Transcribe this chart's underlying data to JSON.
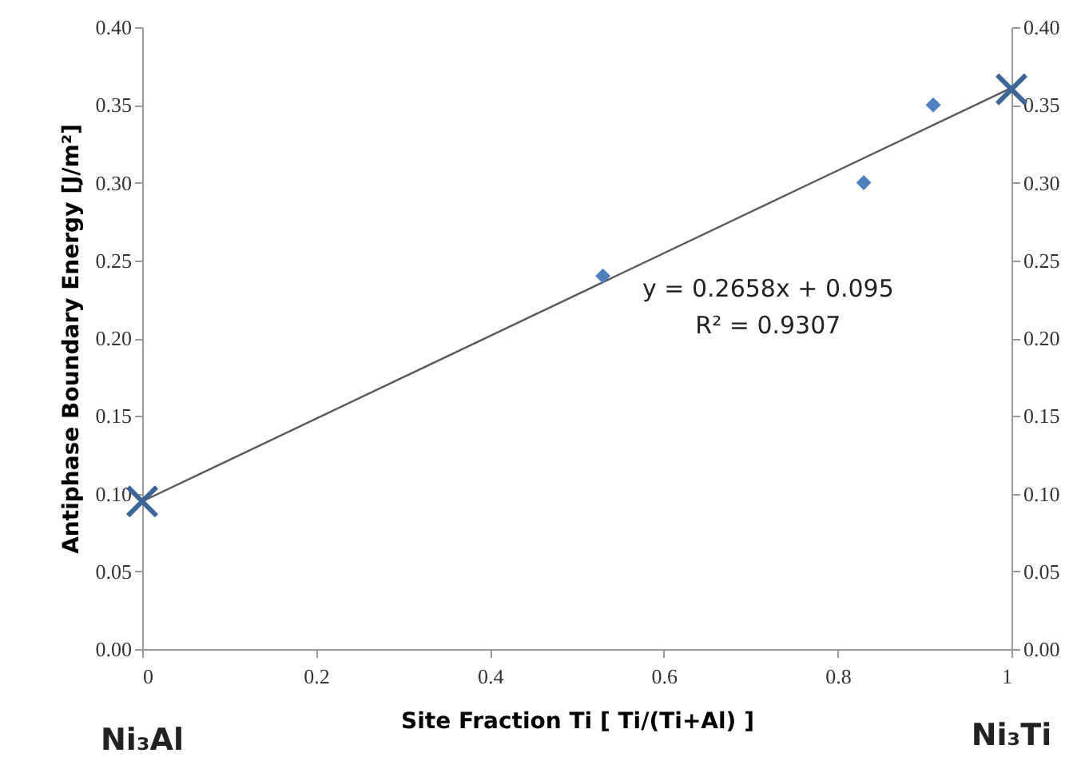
{
  "chart_data": {
    "type": "scatter",
    "xlabel": "Site Fraction Ti [ Ti/(Ti+Al) ]",
    "ylabel": "Antiphase Boundary Energy [J/m²]",
    "xlim": [
      0,
      1
    ],
    "xticks": [
      0,
      0.2,
      0.4,
      0.6,
      0.8,
      1
    ],
    "ylim": [
      0,
      0.4
    ],
    "yticks": [
      {
        "value": 0,
        "label": "0.00"
      },
      {
        "value": 0.05,
        "label": "0.05"
      },
      {
        "value": 0.1,
        "label": "0.10"
      },
      {
        "value": 0.15,
        "label": "0.15"
      },
      {
        "value": 0.2,
        "label": "0.20"
      },
      {
        "value": 0.25,
        "label": "0.25"
      },
      {
        "value": 0.3,
        "label": "0.30"
      },
      {
        "value": 0.35,
        "label": "0.35"
      },
      {
        "value": 0.4,
        "label": "0.40"
      }
    ],
    "y2lim": [
      0,
      0.4
    ],
    "y2ticks": [
      {
        "value": 0,
        "label": "0.00"
      },
      {
        "value": 0.05,
        "label": "0.05"
      },
      {
        "value": 0.1,
        "label": "0.10"
      },
      {
        "value": 0.15,
        "label": "0.15"
      },
      {
        "value": 0.2,
        "label": "0.20"
      },
      {
        "value": 0.25,
        "label": "0.25"
      },
      {
        "value": 0.3,
        "label": "0.30"
      },
      {
        "value": 0.35,
        "label": "0.35"
      },
      {
        "value": 0.4,
        "label": "0.40"
      }
    ],
    "grid": false,
    "series": [
      {
        "type": "line",
        "color": "#595959",
        "x": [
          0,
          1
        ],
        "values": [
          0.095,
          0.361
        ],
        "marker": "none",
        "line_style": "solid"
      },
      {
        "type": "scatter",
        "color": "#4f81bd",
        "x": [
          0.53,
          0.83,
          0.91
        ],
        "values": [
          0.24,
          0.3,
          0.35
        ],
        "marker": "diamond"
      },
      {
        "type": "scatter",
        "color": "#3d6696",
        "x": [
          0,
          1
        ],
        "values": [
          0.095,
          0.36
        ],
        "marker": "cross"
      }
    ],
    "annotations": [
      "y = 0.2658x + 0.095",
      "R² = 0.9307",
      "Ni₃Al",
      "Ni₃Ti"
    ]
  }
}
